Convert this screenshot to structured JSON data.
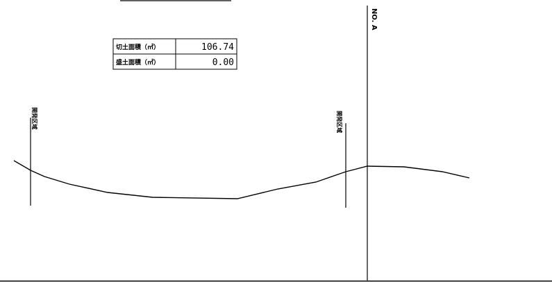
{
  "area_table": {
    "rows": [
      {
        "label": "切土面積（㎡）",
        "value": "106.74"
      },
      {
        "label": "盛土面積（㎡）",
        "value": "0.00"
      }
    ]
  },
  "station": {
    "label": "NO. A"
  },
  "boundary_labels": {
    "left": "開発区域",
    "right": "開発区域"
  },
  "colors": {
    "line": "#000000",
    "background": "#ffffff"
  }
}
